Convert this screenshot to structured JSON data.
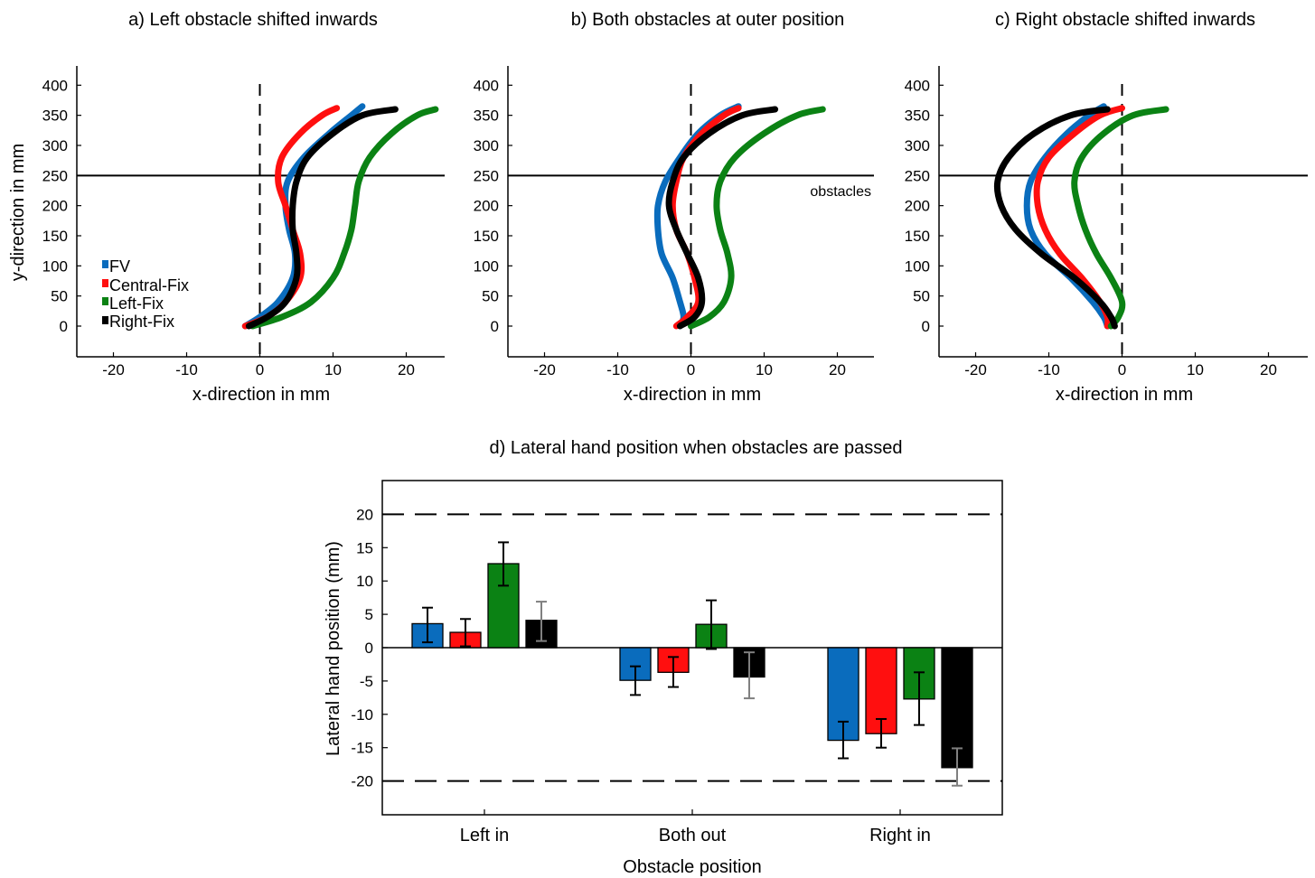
{
  "colors": {
    "FV": "#0a6cbd",
    "Central-Fix": "#ff0f0f",
    "Left-Fix": "#0b8214",
    "Right-Fix": "#000000",
    "err_gray": "#808080"
  },
  "chart_data": [
    {
      "panel": "a",
      "type": "line",
      "title": "a) Left obstacle shifted inwards",
      "xlabel": "x-direction in mm",
      "ylabel": "y-direction in mm",
      "xlim": [
        -25,
        25
      ],
      "ylim": [
        -50,
        430
      ],
      "xticks": [
        -20,
        -10,
        0,
        10,
        20
      ],
      "yticks": [
        0,
        50,
        100,
        150,
        200,
        250,
        300,
        350,
        400
      ],
      "obstacle_y": 250,
      "legend": {
        "placement": "left",
        "entries": [
          "FV",
          "Central-Fix",
          "Left-Fix",
          "Right-Fix"
        ]
      },
      "series": [
        {
          "name": "FV",
          "color": "#0a6cbd",
          "x": [
            -2,
            0,
            2.5,
            4.5,
            4.8,
            4,
            3.5,
            3.8,
            6,
            9.5,
            12.5,
            14
          ],
          "y": [
            0,
            15,
            40,
            80,
            120,
            160,
            200,
            240,
            280,
            320,
            350,
            365
          ]
        },
        {
          "name": "Central-Fix",
          "color": "#ff0f0f",
          "x": [
            -2,
            1,
            3.5,
            5.5,
            5.5,
            4.5,
            3.5,
            2.5,
            3,
            5.5,
            8.5,
            10.5
          ],
          "y": [
            0,
            15,
            40,
            80,
            120,
            160,
            200,
            240,
            280,
            320,
            350,
            362
          ]
        },
        {
          "name": "Left-Fix",
          "color": "#0b8214",
          "x": [
            -1,
            3,
            7,
            10,
            11.5,
            12.5,
            13,
            13.5,
            15,
            18,
            21.5,
            24
          ],
          "y": [
            0,
            15,
            40,
            80,
            120,
            160,
            200,
            240,
            280,
            320,
            350,
            360
          ]
        },
        {
          "name": "Right-Fix",
          "color": "#000000",
          "x": [
            -1.5,
            1,
            3.5,
            5,
            5,
            4.5,
            4.5,
            5,
            6.5,
            10,
            14,
            18.5
          ],
          "y": [
            0,
            15,
            40,
            80,
            120,
            160,
            200,
            240,
            280,
            320,
            350,
            360
          ]
        }
      ]
    },
    {
      "panel": "b",
      "type": "line",
      "title": "b) Both obstacles at outer position",
      "xlabel": "x-direction in mm",
      "xlim": [
        -25,
        25
      ],
      "ylim": [
        -50,
        430
      ],
      "xticks": [
        -20,
        -10,
        0,
        10,
        20
      ],
      "yticks": [
        0,
        50,
        100,
        150,
        200,
        250,
        300,
        350,
        400
      ],
      "obstacle_y": 250,
      "obstacle_label": "obstacles",
      "series": [
        {
          "name": "FV",
          "color": "#0a6cbd",
          "x": [
            -1.5,
            -1,
            -1.5,
            -2.5,
            -4,
            -4.5,
            -4.5,
            -3.5,
            -1.5,
            1,
            4,
            6.5
          ],
          "y": [
            0,
            15,
            40,
            80,
            120,
            160,
            200,
            240,
            280,
            320,
            350,
            365
          ]
        },
        {
          "name": "Central-Fix",
          "color": "#ff0f0f",
          "x": [
            -2,
            -0.5,
            1,
            0.5,
            -0.5,
            -2,
            -2.5,
            -2,
            -1,
            1.5,
            4.5,
            6.5
          ],
          "y": [
            0,
            15,
            40,
            80,
            120,
            160,
            200,
            240,
            280,
            320,
            350,
            362
          ]
        },
        {
          "name": "Left-Fix",
          "color": "#0b8214",
          "x": [
            0,
            2.5,
            4.5,
            5.5,
            5,
            4,
            3.5,
            4,
            6,
            10,
            14.5,
            18
          ],
          "y": [
            0,
            15,
            40,
            80,
            120,
            160,
            200,
            240,
            280,
            320,
            350,
            360
          ]
        },
        {
          "name": "Right-Fix",
          "color": "#000000",
          "x": [
            -1.5,
            0.5,
            1.5,
            1,
            -0.5,
            -2,
            -3,
            -2.5,
            -1,
            2.5,
            7,
            11.5
          ],
          "y": [
            0,
            15,
            40,
            80,
            120,
            160,
            200,
            240,
            280,
            320,
            350,
            360
          ]
        }
      ]
    },
    {
      "panel": "c",
      "type": "line",
      "title": "c) Right obstacle shifted inwards",
      "xlabel": "x-direction in mm",
      "xlim": [
        -25,
        25
      ],
      "ylim": [
        -50,
        430
      ],
      "xticks": [
        -20,
        -10,
        0,
        10,
        20
      ],
      "yticks": [
        0,
        50,
        100,
        150,
        200,
        250,
        300,
        350,
        400
      ],
      "obstacle_y": 250,
      "series": [
        {
          "name": "FV",
          "color": "#0a6cbd",
          "x": [
            -2,
            -2.5,
            -4,
            -7,
            -10.5,
            -12.5,
            -13,
            -12.5,
            -10.5,
            -7.5,
            -4.5,
            -2.5
          ],
          "y": [
            0,
            15,
            40,
            80,
            120,
            160,
            200,
            240,
            280,
            320,
            350,
            365
          ]
        },
        {
          "name": "Central-Fix",
          "color": "#ff0f0f",
          "x": [
            -2,
            -2,
            -3,
            -5.5,
            -8.5,
            -10.5,
            -11.5,
            -11.5,
            -10,
            -6.5,
            -3,
            0
          ],
          "y": [
            0,
            15,
            40,
            80,
            120,
            160,
            200,
            240,
            280,
            320,
            350,
            362
          ]
        },
        {
          "name": "Left-Fix",
          "color": "#0b8214",
          "x": [
            -1.5,
            -0.5,
            0,
            -1.5,
            -3.5,
            -5,
            -6,
            -6.5,
            -5.5,
            -2.5,
            1.5,
            6
          ],
          "y": [
            0,
            15,
            40,
            80,
            120,
            160,
            200,
            240,
            280,
            320,
            350,
            360
          ]
        },
        {
          "name": "Right-Fix",
          "color": "#000000",
          "x": [
            -1,
            -1.5,
            -3,
            -6.5,
            -11,
            -14.5,
            -16.5,
            -17,
            -15.5,
            -12,
            -7,
            -2
          ],
          "y": [
            0,
            15,
            40,
            80,
            120,
            160,
            200,
            240,
            280,
            320,
            350,
            360
          ]
        }
      ]
    },
    {
      "panel": "d",
      "type": "bar",
      "title": "d) Lateral hand position when obstacles are passed",
      "xlabel": "Obstacle position",
      "ylabel": "Lateral hand position (mm)",
      "ylim": [
        -25,
        25
      ],
      "yticks": [
        -20,
        -15,
        -10,
        -5,
        0,
        5,
        10,
        15,
        20
      ],
      "reference_lines": [
        20,
        -20
      ],
      "categories": [
        "Left in",
        "Both out",
        "Right in"
      ],
      "series": [
        {
          "name": "FV",
          "color": "#0a6cbd",
          "values": [
            3.6,
            -4.9,
            -13.9
          ],
          "err_low": [
            0.8,
            -7.1,
            -16.6
          ],
          "err_high": [
            6.0,
            -2.8,
            -11.1
          ]
        },
        {
          "name": "Central-Fix",
          "color": "#ff0f0f",
          "values": [
            2.3,
            -3.7,
            -12.9
          ],
          "err_low": [
            0.2,
            -5.9,
            -15.0
          ],
          "err_high": [
            4.3,
            -1.4,
            -10.7
          ]
        },
        {
          "name": "Left-Fix",
          "color": "#0b8214",
          "values": [
            12.6,
            3.5,
            -7.7
          ],
          "err_low": [
            9.3,
            -0.2,
            -11.6
          ],
          "err_high": [
            15.8,
            7.1,
            -3.7
          ]
        },
        {
          "name": "Right-Fix",
          "color": "#000000",
          "values": [
            4.1,
            -4.4,
            -18.0
          ],
          "err_low": [
            1.0,
            -7.6,
            -20.7
          ],
          "err_high": [
            6.9,
            -0.7,
            -15.1
          ]
        }
      ]
    }
  ]
}
